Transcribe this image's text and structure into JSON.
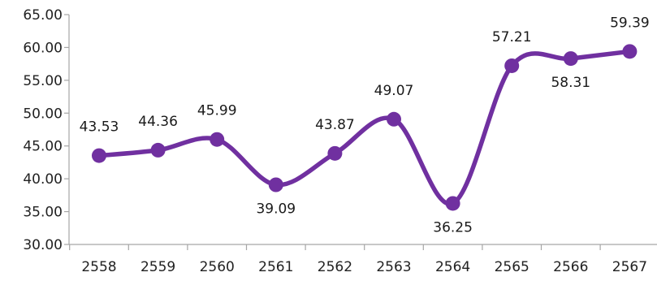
{
  "chart_data": {
    "type": "line",
    "title": "",
    "xlabel": "",
    "ylabel": "",
    "categories": [
      "2558",
      "2559",
      "2560",
      "2561",
      "2562",
      "2563",
      "2564",
      "2565",
      "2566",
      "2567"
    ],
    "series": [
      {
        "values": [
          43.53,
          44.36,
          45.99,
          39.09,
          43.87,
          49.07,
          36.25,
          57.21,
          58.31,
          59.39
        ],
        "labels": [
          "43.53",
          "44.36",
          "45.99",
          "39.09",
          "43.87",
          "49.07",
          "36.25",
          "57.21",
          "58.31",
          "59.39"
        ],
        "label_positions": [
          "above",
          "above",
          "above",
          "below",
          "above",
          "above",
          "below",
          "above",
          "below",
          "above"
        ],
        "color": "#7030a0"
      }
    ],
    "ylim": [
      30,
      65
    ],
    "y_ticks": [
      "30.00",
      "35.00",
      "40.00",
      "45.00",
      "50.00",
      "55.00",
      "60.00",
      "65.00"
    ],
    "grid": false,
    "smooth": true,
    "markers": true,
    "axis_color": "#a6a6a6"
  }
}
